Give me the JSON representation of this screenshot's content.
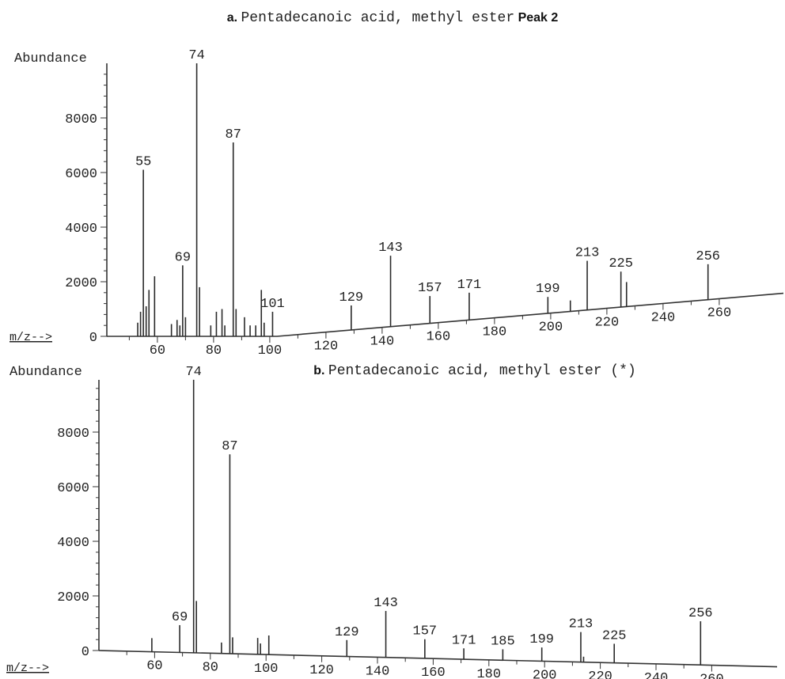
{
  "chart_data": [
    {
      "type": "bar",
      "title_prefix": "a.",
      "title": "Pentadecanoic acid, methyl ester",
      "title_suffix": "Peak 2",
      "xlabel": "m/z-->",
      "ylabel": "Abundance",
      "xlim": [
        41,
        265
      ],
      "ylim": [
        0,
        10000
      ],
      "x_ticks": [
        60,
        80,
        100,
        120,
        140,
        160,
        180,
        200,
        220,
        240,
        260
      ],
      "y_ticks": [
        0,
        2000,
        4000,
        6000,
        8000
      ],
      "grid": false,
      "peaks": [
        {
          "x": 53,
          "y": 500
        },
        {
          "x": 54,
          "y": 900
        },
        {
          "x": 55,
          "y": 6100,
          "label": "55"
        },
        {
          "x": 56,
          "y": 1100
        },
        {
          "x": 57,
          "y": 1700
        },
        {
          "x": 59,
          "y": 2200
        },
        {
          "x": 65,
          "y": 450
        },
        {
          "x": 67,
          "y": 600
        },
        {
          "x": 68,
          "y": 400
        },
        {
          "x": 69,
          "y": 2600,
          "label": "69"
        },
        {
          "x": 70,
          "y": 700
        },
        {
          "x": 74,
          "y": 10000,
          "label": "74"
        },
        {
          "x": 75,
          "y": 1800
        },
        {
          "x": 79,
          "y": 400
        },
        {
          "x": 81,
          "y": 900
        },
        {
          "x": 83,
          "y": 1000
        },
        {
          "x": 84,
          "y": 400
        },
        {
          "x": 87,
          "y": 7100,
          "label": "87"
        },
        {
          "x": 88,
          "y": 1000
        },
        {
          "x": 91,
          "y": 700
        },
        {
          "x": 93,
          "y": 400
        },
        {
          "x": 95,
          "y": 400
        },
        {
          "x": 97,
          "y": 1700
        },
        {
          "x": 98,
          "y": 500
        },
        {
          "x": 101,
          "y": 900,
          "label": "101"
        },
        {
          "x": 129,
          "y": 900,
          "label": "129"
        },
        {
          "x": 143,
          "y": 2600,
          "label": "143"
        },
        {
          "x": 157,
          "y": 1000,
          "label": "157"
        },
        {
          "x": 171,
          "y": 1000,
          "label": "171"
        },
        {
          "x": 199,
          "y": 600,
          "label": "199"
        },
        {
          "x": 207,
          "y": 400
        },
        {
          "x": 213,
          "y": 1800,
          "label": "213"
        },
        {
          "x": 225,
          "y": 1300,
          "label": "225"
        },
        {
          "x": 227,
          "y": 900
        },
        {
          "x": 256,
          "y": 1300,
          "label": "256"
        }
      ]
    },
    {
      "type": "bar",
      "title_prefix": "b.",
      "title": "Pentadecanoic acid, methyl ester (*)",
      "xlabel": "m/z-->",
      "ylabel": "Abundance",
      "xlim": [
        41,
        265
      ],
      "ylim": [
        0,
        10000
      ],
      "x_ticks": [
        60,
        80,
        100,
        120,
        140,
        160,
        180,
        200,
        220,
        240,
        260
      ],
      "y_ticks": [
        0,
        2000,
        4000,
        6000,
        8000
      ],
      "grid": false,
      "peaks": [
        {
          "x": 59,
          "y": 500
        },
        {
          "x": 69,
          "y": 1000,
          "label": "69"
        },
        {
          "x": 74,
          "y": 10000,
          "label": "74"
        },
        {
          "x": 75,
          "y": 1900
        },
        {
          "x": 84,
          "y": 400
        },
        {
          "x": 87,
          "y": 7300,
          "label": "87"
        },
        {
          "x": 88,
          "y": 600
        },
        {
          "x": 97,
          "y": 600
        },
        {
          "x": 98,
          "y": 400
        },
        {
          "x": 101,
          "y": 700
        },
        {
          "x": 129,
          "y": 600,
          "label": "129"
        },
        {
          "x": 143,
          "y": 1700,
          "label": "143"
        },
        {
          "x": 157,
          "y": 700,
          "label": "157"
        },
        {
          "x": 171,
          "y": 400,
          "label": "171"
        },
        {
          "x": 185,
          "y": 400,
          "label": "185"
        },
        {
          "x": 199,
          "y": 500,
          "label": "199"
        },
        {
          "x": 213,
          "y": 1100,
          "label": "213"
        },
        {
          "x": 214,
          "y": 200
        },
        {
          "x": 225,
          "y": 700,
          "label": "225"
        },
        {
          "x": 256,
          "y": 1600,
          "label": "256"
        }
      ]
    }
  ]
}
